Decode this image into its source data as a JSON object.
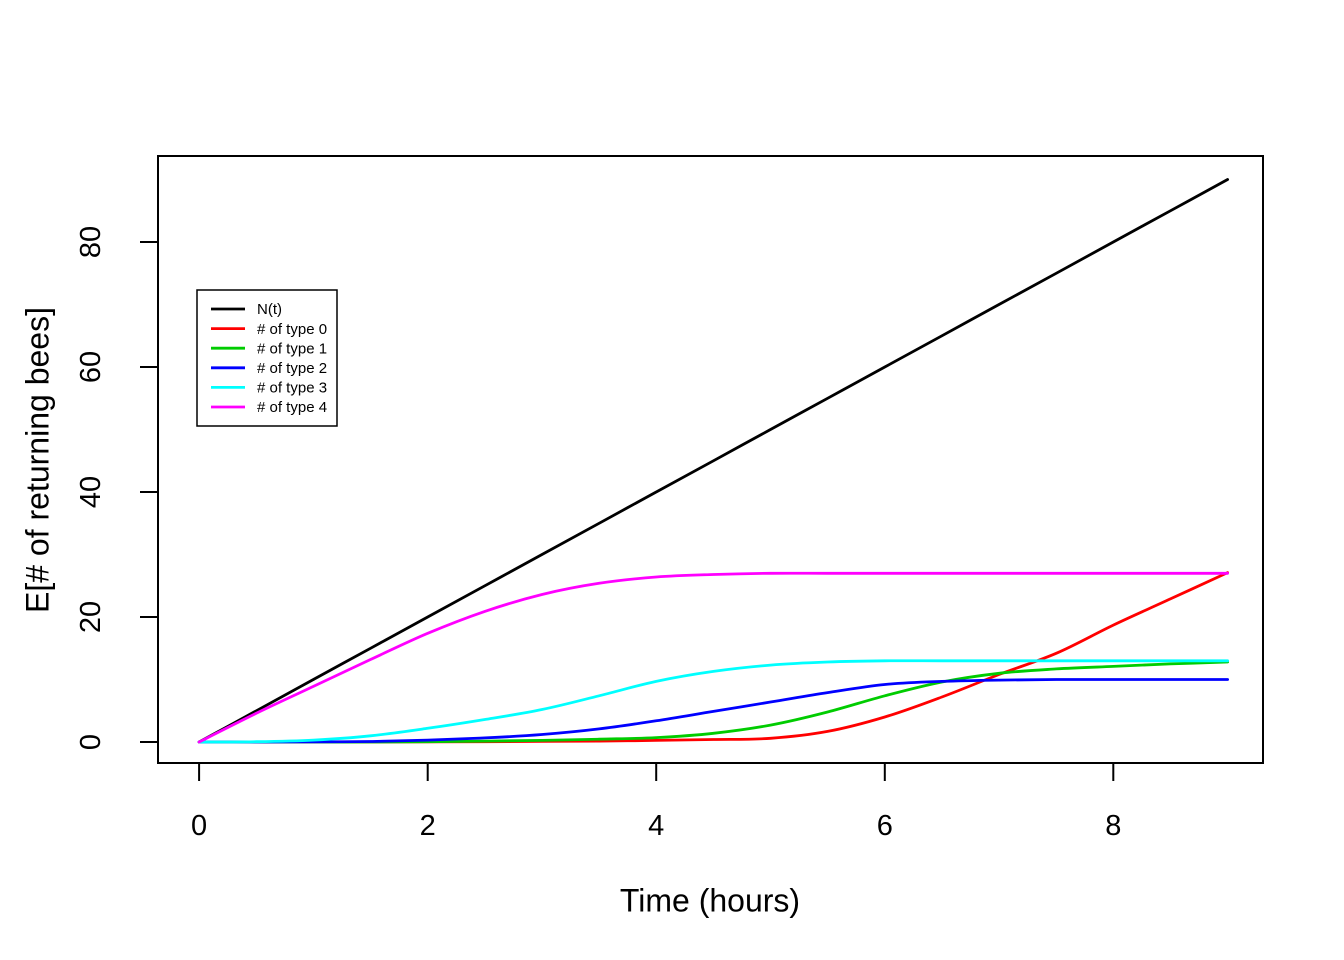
{
  "chart_data": {
    "type": "line",
    "title": "",
    "xlabel": "Time (hours)",
    "ylabel": "E[# of returning bees]",
    "xlim": [
      -0.36,
      9.31
    ],
    "ylim": [
      -3.36,
      93.76
    ],
    "xticks": [
      "0",
      "2",
      "4",
      "6",
      "8"
    ],
    "xtick_values": [
      0,
      2,
      4,
      6,
      8
    ],
    "yticks": [
      "0",
      "20",
      "40",
      "60",
      "80"
    ],
    "ytick_values": [
      0,
      20,
      40,
      60,
      80
    ],
    "grid": false,
    "legend": {
      "position": "upper-left-inside",
      "entries": [
        "N(t)",
        "# of type 0",
        "# of type 1",
        "# of type 2",
        "# of type 3",
        "# of type 4"
      ]
    },
    "x": [
      0,
      0.5,
      1,
      1.5,
      2,
      2.5,
      3,
      3.5,
      4,
      4.5,
      5,
      5.5,
      6,
      6.5,
      7,
      7.5,
      8,
      8.5,
      9
    ],
    "series": [
      {
        "name": "N(t)",
        "color": "#000000",
        "values": [
          0,
          5,
          10,
          15,
          20,
          25,
          30,
          35,
          40,
          45,
          50,
          55,
          60,
          65,
          70,
          75,
          80,
          85,
          90
        ]
      },
      {
        "name": "# of type 0",
        "color": "#FF0000",
        "values": [
          0,
          0,
          0,
          0,
          0.02,
          0.05,
          0.1,
          0.15,
          0.25,
          0.4,
          0.6,
          1.7,
          4.0,
          7.2,
          10.8,
          14.2,
          18.7,
          22.9,
          27.1
        ]
      },
      {
        "name": "# of type 1",
        "color": "#00CC00",
        "values": [
          0,
          0,
          0,
          0,
          0.05,
          0.15,
          0.25,
          0.45,
          0.7,
          1.4,
          2.7,
          4.8,
          7.4,
          9.6,
          11.0,
          11.7,
          12.1,
          12.5,
          12.8
        ]
      },
      {
        "name": "# of type 2",
        "color": "#0000FF",
        "values": [
          0,
          0,
          0.02,
          0.08,
          0.3,
          0.65,
          1.2,
          2.1,
          3.4,
          4.9,
          6.4,
          7.9,
          9.2,
          9.7,
          9.9,
          10,
          10,
          10,
          10
        ]
      },
      {
        "name": "# of type 3",
        "color": "#00FFFF",
        "values": [
          0,
          0.05,
          0.3,
          1.0,
          2.2,
          3.6,
          5.2,
          7.4,
          9.7,
          11.3,
          12.3,
          12.8,
          13,
          13,
          13,
          13,
          13,
          13,
          13
        ]
      },
      {
        "name": "# of type 4",
        "color": "#FF00FF",
        "values": [
          0,
          4.6,
          8.9,
          13.2,
          17.4,
          20.9,
          23.6,
          25.4,
          26.4,
          26.8,
          27,
          27,
          27,
          27,
          27,
          27,
          27,
          27,
          27
        ]
      }
    ]
  }
}
